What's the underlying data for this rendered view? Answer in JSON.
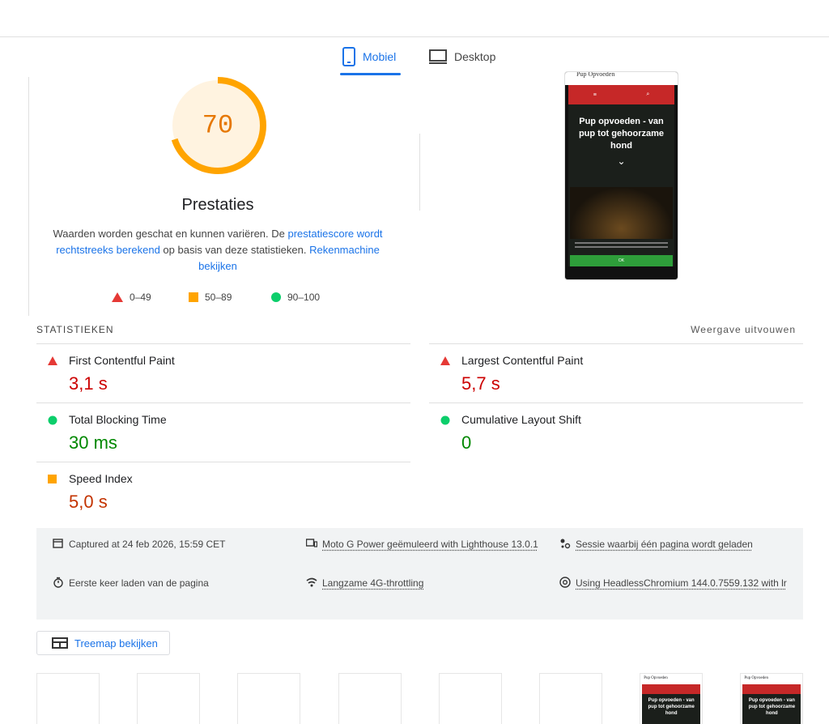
{
  "tabs": [
    {
      "label": "Mobiel",
      "active": true
    },
    {
      "label": "Desktop",
      "active": false
    }
  ],
  "score": {
    "value": 70,
    "max": 100,
    "label": "Prestaties"
  },
  "description": {
    "text1": "Waarden worden geschat en kunnen variëren. De ",
    "link1": "prestatiescore wordt rechtstreeks berekend",
    "text2": " op basis van deze statistieken. ",
    "link2": "Rekenmachine bekijken"
  },
  "legend": [
    "0–49",
    "50–89",
    "90–100"
  ],
  "screenshot": {
    "site_name": "Pup Opvoeden",
    "heading": "Pup opvoeden - van pup tot gehoorzame hond",
    "button": "OK"
  },
  "metrics_header": "STATISTIEKEN",
  "expand": "Weergave uitvouwen",
  "metrics": [
    {
      "name": "First Contentful Paint",
      "value": "3,1 s",
      "rating": "fail"
    },
    {
      "name": "Largest Contentful Paint",
      "value": "5,7 s",
      "rating": "fail"
    },
    {
      "name": "Total Blocking Time",
      "value": "30 ms",
      "rating": "pass"
    },
    {
      "name": "Cumulative Layout Shift",
      "value": "0",
      "rating": "pass"
    },
    {
      "name": "Speed Index",
      "value": "5,0 s",
      "rating": "average"
    }
  ],
  "info": [
    {
      "text": "Captured at 24 feb 2026, 15:59 CET",
      "icon": "calendar"
    },
    {
      "text": "Moto G Power geëmuleerd with Lighthouse 13.0.1",
      "icon": "device"
    },
    {
      "text": "Sessie waarbij één pagina wordt geladen",
      "icon": "session"
    },
    {
      "text": "Eerste keer laden van de pagina",
      "icon": "timer"
    },
    {
      "text": "Langzame 4G-throttling",
      "icon": "wifi"
    },
    {
      "text": "Using HeadlessChromium 144.0.7559.132 with lr",
      "icon": "chrome"
    }
  ],
  "treemap_button": "Treemap bekijken",
  "filmstrip_frames": 8
}
